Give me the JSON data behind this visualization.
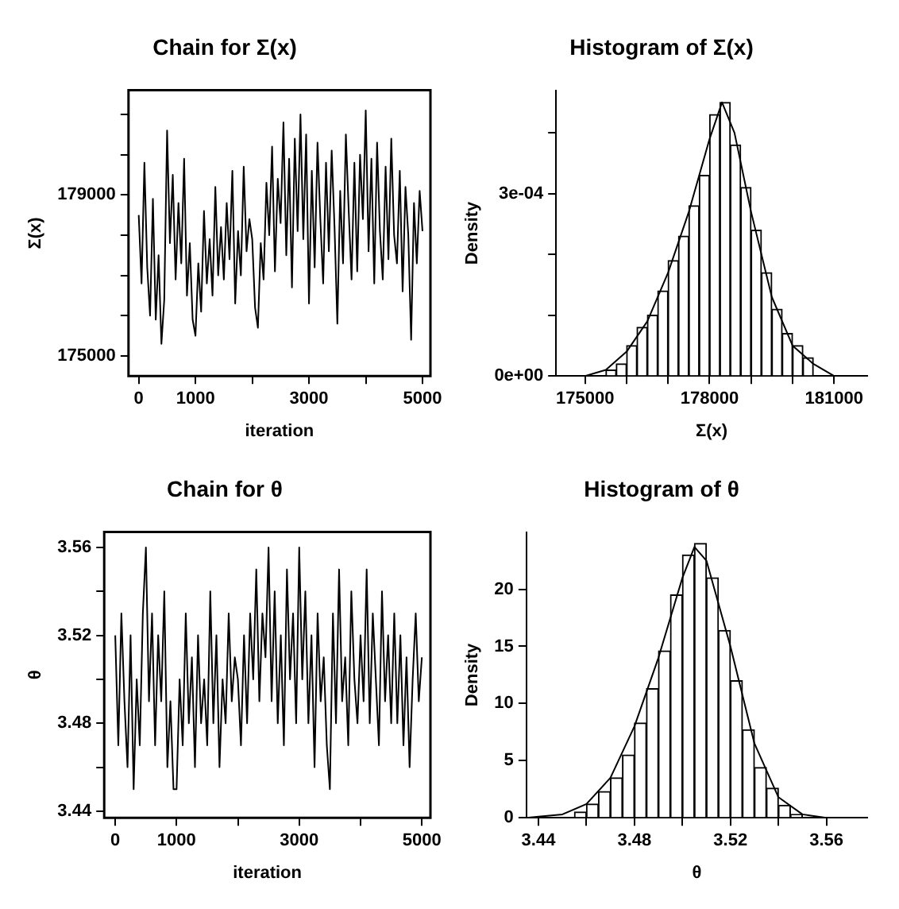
{
  "chart_data": [
    {
      "type": "line",
      "title": "Chain for Σ(x)",
      "xlabel": "iteration",
      "ylabel": "Σ(x)",
      "grid": false,
      "legend": false,
      "color": "#000000",
      "x": [
        0,
        50,
        100,
        150,
        200,
        250,
        300,
        350,
        400,
        450,
        500,
        550,
        600,
        650,
        700,
        750,
        800,
        850,
        900,
        950,
        1000,
        1050,
        1100,
        1150,
        1200,
        1250,
        1300,
        1350,
        1400,
        1450,
        1500,
        1550,
        1600,
        1650,
        1700,
        1750,
        1800,
        1850,
        1900,
        1950,
        2000,
        2050,
        2100,
        2150,
        2200,
        2250,
        2300,
        2350,
        2400,
        2450,
        2500,
        2550,
        2600,
        2650,
        2700,
        2750,
        2800,
        2850,
        2900,
        2950,
        3000,
        3050,
        3100,
        3150,
        3200,
        3250,
        3300,
        3350,
        3400,
        3450,
        3500,
        3550,
        3600,
        3650,
        3700,
        3750,
        3800,
        3850,
        3900,
        3950,
        4000,
        4050,
        4100,
        4150,
        4200,
        4250,
        4300,
        4350,
        4400,
        4450,
        4500,
        4550,
        4600,
        4650,
        4700,
        4750,
        4800,
        4850,
        4900,
        4950,
        5000
      ],
      "values": [
        178500,
        176800,
        179800,
        177200,
        176000,
        178900,
        175900,
        177500,
        175300,
        176400,
        180600,
        177800,
        179500,
        176900,
        178800,
        177300,
        179900,
        176500,
        177800,
        175900,
        175500,
        177300,
        176100,
        178600,
        176800,
        177900,
        176500,
        179200,
        177000,
        178200,
        176900,
        178800,
        177400,
        179600,
        176300,
        178100,
        177000,
        179700,
        177600,
        178400,
        177900,
        176200,
        175700,
        177800,
        176900,
        179300,
        178000,
        180200,
        177100,
        179400,
        178300,
        180800,
        177500,
        179900,
        176700,
        180400,
        178100,
        181000,
        177900,
        180500,
        176300,
        179600,
        177200,
        180300,
        178400,
        176800,
        179800,
        177600,
        180100,
        178200,
        175800,
        179100,
        177300,
        180500,
        178600,
        176900,
        179800,
        177100,
        180000,
        178400,
        181100,
        177600,
        179900,
        176800,
        180300,
        178100,
        176900,
        179700,
        177400,
        180400,
        178000,
        177300,
        179600,
        176600,
        179200,
        178000,
        175400,
        178800,
        177300,
        179100,
        178100
      ],
      "xlim": [
        -180,
        5140
      ],
      "xticks": [
        0,
        1000,
        {
          "value": 2000,
          "label": null
        },
        3000,
        {
          "value": 4000,
          "label": null
        },
        5000
      ],
      "ylim": [
        174500,
        181600
      ],
      "yticks": [
        175000,
        {
          "value": 176000,
          "label": null
        },
        {
          "value": 177000,
          "label": null
        },
        {
          "value": 178000,
          "label": null
        },
        179000,
        {
          "value": 180000,
          "label": null
        },
        {
          "value": 181000,
          "label": null
        }
      ]
    },
    {
      "type": "histogram",
      "title": "Histogram of Σ(x)",
      "xlabel": "Σ(x)",
      "ylabel": "Density",
      "grid": false,
      "legend": false,
      "series": [
        {
          "type": "histogram",
          "color": "#ffffff",
          "bins": [
            175500,
            175750,
            176000,
            176250,
            176500,
            176750,
            177000,
            177250,
            177500,
            177750,
            178000,
            178250,
            178500,
            178750,
            179000,
            179250,
            179500,
            179750,
            180000,
            180250,
            180500
          ],
          "values": [
            1e-05,
            2e-05,
            5e-05,
            8e-05,
            0.0001,
            0.00014,
            0.00019,
            0.00023,
            0.00028,
            0.00033,
            0.00043,
            0.00045,
            0.00038,
            0.00031,
            0.00024,
            0.00017,
            0.00011,
            7e-05,
            5e-05,
            3e-05
          ]
        },
        {
          "type": "line",
          "color": "#000000",
          "x": [
            174300,
            174500,
            175000,
            175500,
            176000,
            176500,
            177000,
            177500,
            178000,
            178300,
            178600,
            179000,
            179500,
            180000,
            180500,
            181000,
            181500,
            181800
          ],
          "values": [
            0,
            0,
            0,
            1e-05,
            4e-05,
            9e-05,
            0.00017,
            0.00027,
            0.00039,
            0.00045,
            0.0004,
            0.00027,
            0.00013,
            5e-05,
            2e-05,
            0,
            0,
            0
          ]
        }
      ],
      "xlim": [
        174300,
        181800
      ],
      "xticks": [
        175000,
        {
          "value": 176000,
          "label": null
        },
        {
          "value": 177000,
          "label": null
        },
        178000,
        {
          "value": 179000,
          "label": null
        },
        {
          "value": 180000,
          "label": null
        },
        181000
      ],
      "ylim": [
        0,
        0.00047
      ],
      "yticks": [
        {
          "value": 0,
          "label": "0e+00"
        },
        {
          "value": 0.0001,
          "label": null
        },
        {
          "value": 0.0002,
          "label": null
        },
        {
          "value": 0.0003,
          "label": "3e-04"
        },
        {
          "value": 0.0004,
          "label": null
        }
      ]
    },
    {
      "type": "line",
      "title": "Chain for θ",
      "xlabel": "iteration",
      "ylabel": "θ",
      "grid": false,
      "legend": false,
      "color": "#000000",
      "x": [
        0,
        50,
        100,
        150,
        200,
        250,
        300,
        350,
        400,
        450,
        500,
        550,
        600,
        650,
        700,
        750,
        800,
        850,
        900,
        950,
        1000,
        1050,
        1100,
        1150,
        1200,
        1250,
        1300,
        1350,
        1400,
        1450,
        1500,
        1550,
        1600,
        1650,
        1700,
        1750,
        1800,
        1850,
        1900,
        1950,
        2000,
        2050,
        2100,
        2150,
        2200,
        2250,
        2300,
        2350,
        2400,
        2450,
        2500,
        2550,
        2600,
        2650,
        2700,
        2750,
        2800,
        2850,
        2900,
        2950,
        3000,
        3050,
        3100,
        3150,
        3200,
        3250,
        3300,
        3350,
        3400,
        3450,
        3500,
        3550,
        3600,
        3650,
        3700,
        3750,
        3800,
        3850,
        3900,
        3950,
        4000,
        4050,
        4100,
        4150,
        4200,
        4250,
        4300,
        4350,
        4400,
        4450,
        4500,
        4550,
        4600,
        4650,
        4700,
        4750,
        4800,
        4850,
        4900,
        4950,
        5000
      ],
      "values": [
        3.52,
        3.47,
        3.53,
        3.49,
        3.46,
        3.52,
        3.45,
        3.5,
        3.47,
        3.53,
        3.56,
        3.49,
        3.53,
        3.47,
        3.52,
        3.49,
        3.54,
        3.46,
        3.49,
        3.45,
        3.45,
        3.5,
        3.47,
        3.53,
        3.48,
        3.51,
        3.46,
        3.52,
        3.48,
        3.5,
        3.47,
        3.54,
        3.48,
        3.52,
        3.46,
        3.5,
        3.48,
        3.53,
        3.49,
        3.51,
        3.5,
        3.47,
        3.52,
        3.48,
        3.53,
        3.5,
        3.55,
        3.49,
        3.53,
        3.51,
        3.56,
        3.49,
        3.54,
        3.48,
        3.52,
        3.47,
        3.55,
        3.5,
        3.53,
        3.48,
        3.56,
        3.5,
        3.54,
        3.48,
        3.52,
        3.46,
        3.53,
        3.49,
        3.51,
        3.47,
        3.45,
        3.53,
        3.48,
        3.55,
        3.49,
        3.51,
        3.47,
        3.54,
        3.5,
        3.48,
        3.52,
        3.49,
        3.55,
        3.48,
        3.53,
        3.5,
        3.47,
        3.54,
        3.49,
        3.52,
        3.48,
        3.53,
        3.48,
        3.52,
        3.47,
        3.51,
        3.46,
        3.5,
        3.53,
        3.49,
        3.51
      ],
      "xlim": [
        -180,
        5140
      ],
      "xticks": [
        0,
        1000,
        {
          "value": 2000,
          "label": null
        },
        3000,
        {
          "value": 4000,
          "label": null
        },
        5000
      ],
      "ylim": [
        3.437,
        3.567
      ],
      "yticks": [
        3.44,
        {
          "value": 3.46,
          "label": null
        },
        3.48,
        {
          "value": 3.5,
          "label": null
        },
        3.52,
        {
          "value": 3.54,
          "label": null
        },
        3.56
      ]
    },
    {
      "type": "histogram",
      "title": "Histogram of θ",
      "xlabel": "θ",
      "ylabel": "Density",
      "grid": false,
      "legend": false,
      "series": [
        {
          "type": "histogram",
          "color": "#ffffff",
          "bins": [
            3.455,
            3.46,
            3.465,
            3.47,
            3.475,
            3.48,
            3.485,
            3.49,
            3.495,
            3.5,
            3.505,
            3.51,
            3.515,
            3.52,
            3.525,
            3.53,
            3.535,
            3.54,
            3.545,
            3.55
          ],
          "values": [
            0.5,
            1.2,
            2.3,
            3.5,
            5.5,
            8.3,
            11.3,
            14.6,
            19.5,
            23,
            24,
            21,
            16.4,
            12,
            7.7,
            4.4,
            2.6,
            1.1,
            0.3
          ]
        },
        {
          "type": "line",
          "color": "#000000",
          "x": [
            3.435,
            3.44,
            3.45,
            3.46,
            3.47,
            3.48,
            3.49,
            3.5,
            3.505,
            3.51,
            3.52,
            3.53,
            3.54,
            3.55,
            3.56,
            3.577
          ],
          "values": [
            0,
            0.1,
            0.3,
            1.2,
            3.5,
            8,
            14,
            21,
            23.7,
            22.5,
            15,
            6.5,
            1.8,
            0.3,
            0,
            0
          ]
        }
      ],
      "xlim": [
        3.435,
        3.577
      ],
      "xticks": [
        3.44,
        {
          "value": 3.46,
          "label": null
        },
        3.48,
        {
          "value": 3.5,
          "label": null
        },
        3.52,
        {
          "value": 3.54,
          "label": null
        },
        3.56
      ],
      "ylim": [
        0,
        25
      ],
      "yticks": [
        0,
        5,
        10,
        15,
        20
      ]
    }
  ]
}
